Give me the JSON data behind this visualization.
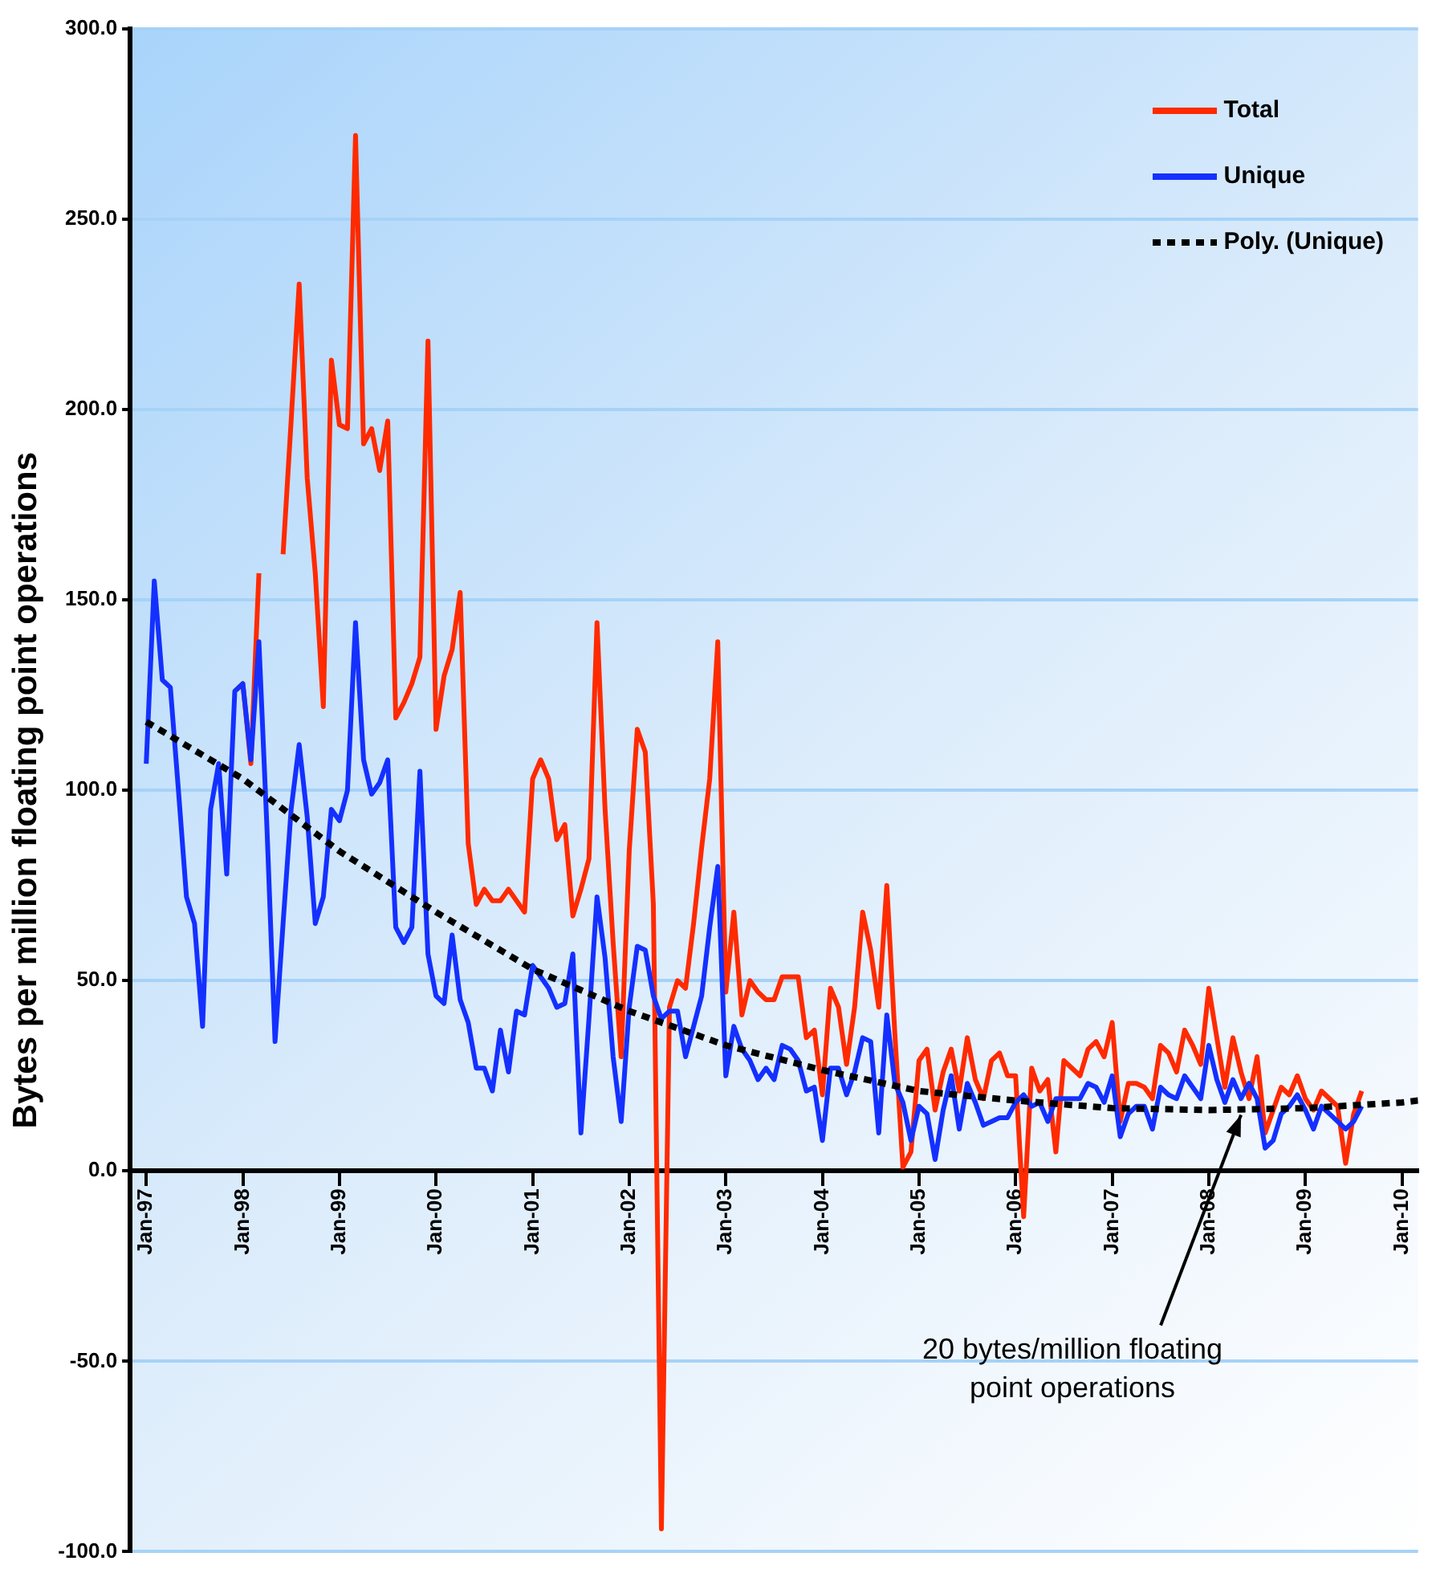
{
  "chart_data": {
    "type": "line",
    "ylabel": "Bytes per million floating point operations",
    "x": [
      "1997-01",
      "1997-02",
      "1997-03",
      "1997-04",
      "1997-05",
      "1997-06",
      "1997-07",
      "1997-08",
      "1997-09",
      "1997-10",
      "1997-11",
      "1997-12",
      "1998-01",
      "1998-02",
      "1998-03",
      "1998-04",
      "1998-05",
      "1998-06",
      "1998-07",
      "1998-08",
      "1998-09",
      "1998-10",
      "1998-11",
      "1998-12",
      "1999-01",
      "1999-02",
      "1999-03",
      "1999-04",
      "1999-05",
      "1999-06",
      "1999-07",
      "1999-08",
      "1999-09",
      "1999-10",
      "1999-11",
      "1999-12",
      "2000-01",
      "2000-02",
      "2000-03",
      "2000-04",
      "2000-05",
      "2000-06",
      "2000-07",
      "2000-08",
      "2000-09",
      "2000-10",
      "2000-11",
      "2000-12",
      "2001-01",
      "2001-02",
      "2001-03",
      "2001-04",
      "2001-05",
      "2001-06",
      "2001-07",
      "2001-08",
      "2001-09",
      "2001-10",
      "2001-11",
      "2001-12",
      "2002-01",
      "2002-02",
      "2002-03",
      "2002-04",
      "2002-05",
      "2002-06",
      "2002-07",
      "2002-08",
      "2002-09",
      "2002-10",
      "2002-11",
      "2002-12",
      "2003-01",
      "2003-02",
      "2003-03",
      "2003-04",
      "2003-05",
      "2003-06",
      "2003-07",
      "2003-08",
      "2003-09",
      "2003-10",
      "2003-11",
      "2003-12",
      "2004-01",
      "2004-02",
      "2004-03",
      "2004-04",
      "2004-05",
      "2004-06",
      "2004-07",
      "2004-08",
      "2004-09",
      "2004-10",
      "2004-11",
      "2004-12",
      "2005-01",
      "2005-02",
      "2005-03",
      "2005-04",
      "2005-05",
      "2005-06",
      "2005-07",
      "2005-08",
      "2005-09",
      "2005-10",
      "2005-11",
      "2005-12",
      "2006-01",
      "2006-02",
      "2006-03",
      "2006-04",
      "2006-05",
      "2006-06",
      "2006-07",
      "2006-08",
      "2006-09",
      "2006-10",
      "2006-11",
      "2006-12",
      "2007-01",
      "2007-02",
      "2007-03",
      "2007-04",
      "2007-05",
      "2007-06",
      "2007-07",
      "2007-08",
      "2007-09",
      "2007-10",
      "2007-11",
      "2007-12",
      "2008-01",
      "2008-02",
      "2008-03",
      "2008-04",
      "2008-05",
      "2008-06",
      "2008-07",
      "2008-08",
      "2008-09",
      "2008-10",
      "2008-11",
      "2008-12",
      "2009-01",
      "2009-02",
      "2009-03",
      "2009-04",
      "2009-05",
      "2009-06",
      "2009-07",
      "2009-08"
    ],
    "series": [
      {
        "name": "Total",
        "color": "#ff2a00",
        "values": [
          null,
          null,
          null,
          null,
          null,
          null,
          null,
          null,
          null,
          null,
          null,
          126,
          128,
          107,
          157,
          null,
          null,
          162,
          197,
          233,
          182,
          157,
          122,
          213,
          196,
          195,
          272,
          191,
          195,
          184,
          197,
          119,
          123,
          128,
          135,
          218,
          116,
          130,
          137,
          152,
          86,
          70,
          74,
          71,
          71,
          74,
          71,
          68,
          103,
          108,
          103,
          87,
          91,
          67,
          74,
          82,
          144,
          95,
          60,
          30,
          84,
          116,
          110,
          70,
          -94,
          43,
          50,
          48,
          65,
          85,
          103,
          139,
          47,
          68,
          41,
          50,
          47,
          45,
          45,
          51,
          51,
          51,
          35,
          37,
          20,
          48,
          43,
          28,
          43,
          68,
          58,
          43,
          75,
          36,
          1,
          5,
          29,
          32,
          16,
          26,
          32,
          21,
          35,
          24,
          19,
          29,
          31,
          25,
          25,
          -12,
          27,
          21,
          24,
          5,
          29,
          27,
          25,
          32,
          34,
          30,
          39,
          13,
          23,
          23,
          22,
          19,
          33,
          31,
          26,
          37,
          33,
          28,
          48,
          35,
          22,
          35,
          26,
          19,
          30,
          10,
          16,
          22,
          20,
          25,
          19,
          16,
          21,
          19,
          17,
          2,
          15,
          21
        ]
      },
      {
        "name": "Unique",
        "color": "#1430ff",
        "values": [
          107,
          155,
          129,
          127,
          100,
          72,
          65,
          38,
          95,
          107,
          78,
          126,
          128,
          108,
          139,
          90,
          34,
          65,
          95,
          112,
          93,
          65,
          72,
          95,
          92,
          100,
          144,
          108,
          99,
          102,
          108,
          64,
          60,
          64,
          105,
          57,
          46,
          44,
          62,
          45,
          39,
          27,
          27,
          21,
          37,
          26,
          42,
          41,
          54,
          51,
          48,
          43,
          44,
          57,
          10,
          40,
          72,
          56,
          30,
          13,
          43,
          59,
          58,
          46,
          40,
          42,
          42,
          30,
          38,
          46,
          64,
          80,
          25,
          38,
          32,
          29,
          24,
          27,
          24,
          33,
          32,
          29,
          21,
          22,
          8,
          27,
          27,
          20,
          26,
          35,
          34,
          10,
          41,
          23,
          18,
          8,
          17,
          15,
          3,
          16,
          25,
          11,
          23,
          18,
          12,
          13,
          14,
          14,
          18,
          20,
          17,
          18,
          13,
          19,
          19,
          19,
          19,
          23,
          22,
          18,
          25,
          9,
          15,
          17,
          17,
          11,
          22,
          20,
          19,
          25,
          22,
          19,
          33,
          24,
          18,
          24,
          19,
          23,
          19,
          6,
          8,
          15,
          17,
          20,
          16,
          11,
          17,
          15,
          13,
          11,
          13,
          17
        ]
      },
      {
        "name": "Poly. (Unique)",
        "color": "#000000",
        "line_style": "dotted",
        "x": [
          "1997-01",
          "1998-01",
          "1999-01",
          "2000-01",
          "2001-01",
          "2002-01",
          "2003-01",
          "2004-01",
          "2005-01",
          "2006-01",
          "2007-01",
          "2008-01",
          "2009-01",
          "2010-01",
          "2010-03"
        ],
        "values": [
          118,
          103,
          84,
          68,
          53,
          42,
          33,
          26.5,
          21,
          18.5,
          16.5,
          16,
          16.5,
          18,
          18.5
        ]
      }
    ],
    "xlim": [
      "1996-11",
      "2010-03"
    ],
    "xticks": [
      {
        "value": "1997-01",
        "label": "Jan-97"
      },
      {
        "value": "1998-01",
        "label": "Jan-98"
      },
      {
        "value": "1999-01",
        "label": "Jan-99"
      },
      {
        "value": "2000-01",
        "label": "Jan-00"
      },
      {
        "value": "2001-01",
        "label": "Jan-01"
      },
      {
        "value": "2002-01",
        "label": "Jan-02"
      },
      {
        "value": "2003-01",
        "label": "Jan-03"
      },
      {
        "value": "2004-01",
        "label": "Jan-04"
      },
      {
        "value": "2005-01",
        "label": "Jan-05"
      },
      {
        "value": "2006-01",
        "label": "Jan-06"
      },
      {
        "value": "2007-01",
        "label": "Jan-07"
      },
      {
        "value": "2008-01",
        "label": "Jan-08"
      },
      {
        "value": "2009-01",
        "label": "Jan-09"
      },
      {
        "value": "2010-01",
        "label": "Jan-10"
      }
    ],
    "ylim": [
      -100,
      300
    ],
    "yticks": [
      {
        "value": -100,
        "label": "-100.0"
      },
      {
        "value": -50,
        "label": "-50.0"
      },
      {
        "value": 0,
        "label": "0.0"
      },
      {
        "value": 50,
        "label": "50.0"
      },
      {
        "value": 100,
        "label": "100.0"
      },
      {
        "value": 150,
        "label": "150.0"
      },
      {
        "value": 200,
        "label": "200.0"
      },
      {
        "value": 250,
        "label": "250.0"
      },
      {
        "value": 300,
        "label": "300.0"
      }
    ],
    "grid": "y",
    "legend": "top right",
    "marker": "none",
    "annotations": [
      {
        "text": "20 bytes/million floating point operations",
        "x": "2008-05",
        "y": 16
      }
    ]
  }
}
